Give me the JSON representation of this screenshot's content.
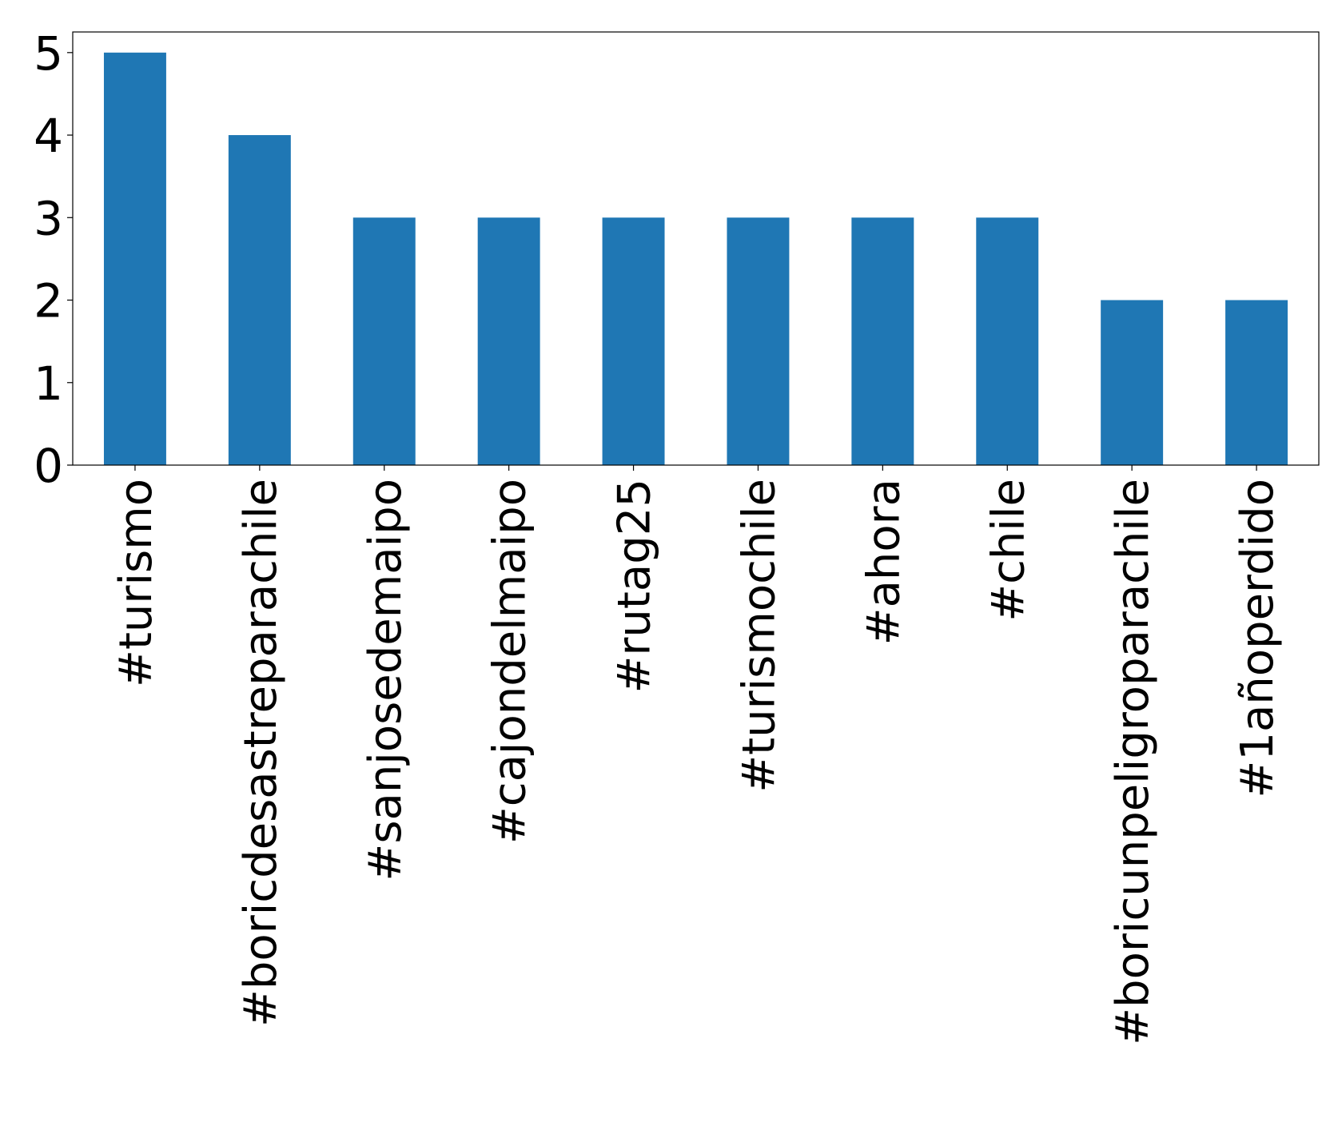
{
  "chart_data": {
    "type": "bar",
    "title": "",
    "xlabel": "",
    "ylabel": "",
    "categories": [
      "#turismo",
      "#boricdesastreparachile",
      "#sanjosedemaipo",
      "#cajondelmaipo",
      "#rutag25",
      "#turismochile",
      "#ahora",
      "#chile",
      "#boricunpeligroparachile",
      "#1añoperdido"
    ],
    "values": [
      5,
      4,
      3,
      3,
      3,
      3,
      3,
      3,
      2,
      2
    ],
    "ylim": [
      0,
      5.25
    ],
    "yticks": [
      0,
      1,
      2,
      3,
      4,
      5
    ],
    "grid": false,
    "legend": "none",
    "bar_color": "#1f77b4"
  }
}
